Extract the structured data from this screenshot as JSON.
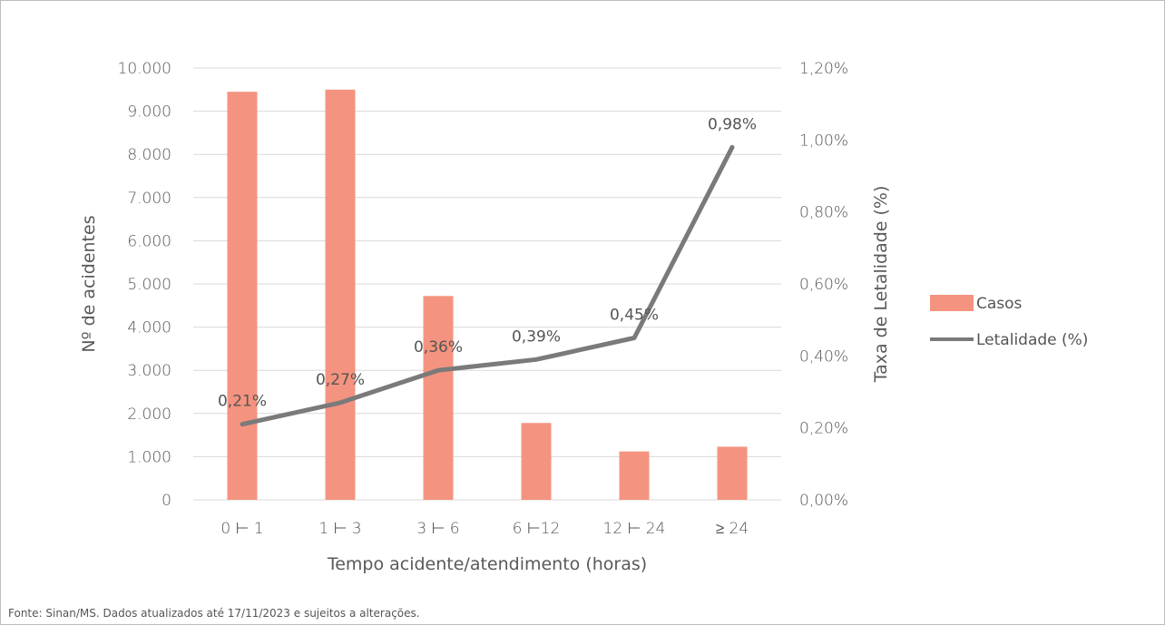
{
  "source_note": "Fonte: Sinan/MS. Dados atualizados até 17/11/2023 e sujeitos a alterações.",
  "colors": {
    "bar": "#F4937F",
    "line": "#7A7A7A",
    "grid": "#D9D9D9"
  },
  "chart_data": {
    "type": "bar+line",
    "categories": [
      "0 ⊢ 1",
      "1 ⊢ 3",
      "3 ⊢ 6",
      "6 ⊢12",
      "12 ⊢ 24",
      "≥ 24"
    ],
    "xlabel": "Tempo acidente/atendimento (horas)",
    "ylabel": "Nº de acidentes",
    "y2label": "Taxa de Letalidade (%)",
    "ylim": [
      0,
      10000
    ],
    "y2lim": [
      0,
      1.2
    ],
    "yticks": [
      "0",
      "1.000",
      "2.000",
      "3.000",
      "4.000",
      "5.000",
      "6.000",
      "7.000",
      "8.000",
      "9.000",
      "10.000"
    ],
    "y2ticks": [
      "0,00%",
      "0,20%",
      "0,40%",
      "0,60%",
      "0,80%",
      "1,00%",
      "1,20%"
    ],
    "grid": true,
    "legend_position": "right",
    "series": [
      {
        "name": "Casos",
        "type": "bar",
        "axis": "left",
        "values": [
          9450,
          9500,
          4720,
          1780,
          1120,
          1230
        ]
      },
      {
        "name": "Letalidade (%)",
        "type": "line",
        "axis": "right",
        "values": [
          0.21,
          0.27,
          0.36,
          0.39,
          0.45,
          0.98
        ],
        "labels": [
          "0,21%",
          "0,27%",
          "0,36%",
          "0,39%",
          "0,45%",
          "0,98%"
        ]
      }
    ]
  }
}
